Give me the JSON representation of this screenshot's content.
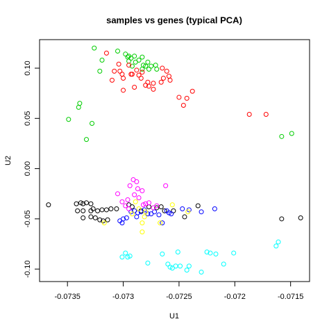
{
  "chart_data": {
    "type": "scatter",
    "title": "samples vs genes (typical PCA)",
    "x_label": "U1",
    "y_label": "U2",
    "xlim": [
      -0.07375,
      -0.07133
    ],
    "ylim": [
      -0.1124,
      0.1284
    ],
    "xticks": [
      -0.0735,
      -0.073,
      -0.0725,
      -0.072,
      -0.0715
    ],
    "yticks": [
      {
        "value": -0.1,
        "label": "-0.10"
      },
      -0.05,
      {
        "value": 0,
        "label": "0.00"
      },
      0.05,
      {
        "value": 0.1,
        "label": "0.10"
      }
    ],
    "grid": false,
    "series": [
      {
        "color": "#00cd00",
        "x": [
          -0.07326,
          -0.07319,
          -0.07321,
          -0.07305,
          -0.07298,
          -0.07296,
          -0.07295,
          -0.07293,
          -0.0729,
          -0.07295,
          -0.07289,
          -0.07286,
          -0.07283,
          -0.07282,
          -0.07283,
          -0.0728,
          -0.07278,
          -0.07277,
          -0.07275,
          -0.07271,
          -0.0727,
          -0.07339,
          -0.0734,
          -0.07349,
          -0.07328,
          -0.07333,
          -0.07158,
          -0.07149,
          -0.07292
        ],
        "y": [
          0.12,
          0.108,
          0.097,
          0.117,
          0.114,
          0.111,
          0.112,
          0.11,
          0.112,
          0.107,
          0.106,
          0.108,
          0.111,
          0.103,
          0.099,
          0.102,
          0.106,
          0.099,
          0.102,
          0.103,
          0.099,
          0.065,
          0.061,
          0.049,
          0.045,
          0.029,
          0.032,
          0.035,
          0.102
        ]
      },
      {
        "color": "#ff0000",
        "x": [
          -0.07315,
          -0.07304,
          -0.07301,
          -0.07292,
          -0.07295,
          -0.07303,
          -0.07308,
          -0.0731,
          -0.073,
          -0.07293,
          -0.07288,
          -0.07286,
          -0.07283,
          -0.07278,
          -0.07277,
          -0.07273,
          -0.07273,
          -0.07266,
          -0.07264,
          -0.07261,
          -0.07259,
          -0.07258,
          -0.07265,
          -0.0725,
          -0.07246,
          -0.07238,
          -0.07243,
          -0.07187,
          -0.07172,
          -0.073,
          -0.0729,
          -0.07284,
          -0.0728
        ],
        "y": [
          0.115,
          0.104,
          0.094,
          0.094,
          0.103,
          0.097,
          0.097,
          0.088,
          0.09,
          0.094,
          0.098,
          0.093,
          0.096,
          0.086,
          0.082,
          0.079,
          0.085,
          0.086,
          0.09,
          0.097,
          0.092,
          0.088,
          0.1,
          0.071,
          0.063,
          0.077,
          0.07,
          0.054,
          0.054,
          0.078,
          0.081,
          0.09,
          0.083
        ]
      },
      {
        "color": "#000000",
        "x": [
          -0.07367,
          -0.07342,
          -0.07338,
          -0.07336,
          -0.07333,
          -0.07329,
          -0.07341,
          -0.07336,
          -0.07329,
          -0.07327,
          -0.07323,
          -0.07319,
          -0.07315,
          -0.07311,
          -0.07336,
          -0.07329,
          -0.07325,
          -0.07321,
          -0.07318,
          -0.07314,
          -0.07295,
          -0.07292,
          -0.07277,
          -0.0727,
          -0.07266,
          -0.07263,
          -0.07255,
          -0.07245,
          -0.07233,
          -0.07141,
          -0.07158,
          -0.07306,
          -0.07284
        ],
        "y": [
          -0.036,
          -0.035,
          -0.034,
          -0.035,
          -0.034,
          -0.035,
          -0.042,
          -0.042,
          -0.042,
          -0.04,
          -0.042,
          -0.041,
          -0.041,
          -0.04,
          -0.049,
          -0.048,
          -0.049,
          -0.051,
          -0.052,
          -0.051,
          -0.036,
          -0.038,
          -0.038,
          -0.039,
          -0.038,
          -0.042,
          -0.042,
          -0.048,
          -0.037,
          -0.049,
          -0.05,
          -0.04,
          -0.042
        ]
      },
      {
        "color": "#0000ff",
        "x": [
          -0.07303,
          -0.073,
          -0.07297,
          -0.07293,
          -0.0729,
          -0.07287,
          -0.07284,
          -0.07281,
          -0.07278,
          -0.07275,
          -0.07272,
          -0.07268,
          -0.07265,
          -0.07261,
          -0.07259,
          -0.07257,
          -0.07247,
          -0.07241,
          -0.0723,
          -0.07218,
          -0.07301,
          -0.07288
        ],
        "y": [
          -0.052,
          -0.05,
          -0.049,
          -0.043,
          -0.042,
          -0.044,
          -0.043,
          -0.041,
          -0.045,
          -0.045,
          -0.043,
          -0.046,
          -0.054,
          -0.042,
          -0.044,
          -0.045,
          -0.04,
          -0.041,
          -0.043,
          -0.04,
          -0.054,
          -0.048
        ]
      },
      {
        "color": "#ff00ff",
        "x": [
          -0.07305,
          -0.07301,
          -0.07296,
          -0.07294,
          -0.07291,
          -0.07288,
          -0.07287,
          -0.0729,
          -0.07286,
          -0.07282,
          -0.0728,
          -0.07277,
          -0.07273,
          -0.07262,
          -0.07298,
          -0.07283,
          -0.0727,
          -0.07295
        ],
        "y": [
          -0.025,
          -0.033,
          -0.031,
          -0.017,
          -0.011,
          -0.013,
          -0.02,
          -0.026,
          -0.029,
          -0.036,
          -0.035,
          -0.034,
          -0.039,
          -0.017,
          -0.037,
          -0.022,
          -0.037,
          -0.04
        ]
      },
      {
        "color": "#ffff00",
        "x": [
          -0.07289,
          -0.07286,
          -0.07283,
          -0.07281,
          -0.07283,
          -0.07292,
          -0.07317,
          -0.0728,
          -0.07256,
          -0.07242,
          -0.07267
        ],
        "y": [
          -0.033,
          -0.04,
          -0.054,
          -0.048,
          -0.063,
          -0.045,
          -0.054,
          -0.043,
          -0.036,
          -0.043,
          -0.054
        ]
      },
      {
        "color": "#00ffff",
        "x": [
          -0.07301,
          -0.07298,
          -0.07296,
          -0.07294,
          -0.07278,
          -0.07265,
          -0.0726,
          -0.07258,
          -0.07256,
          -0.07253,
          -0.07251,
          -0.07249,
          -0.07243,
          -0.07241,
          -0.0723,
          -0.07225,
          -0.07222,
          -0.07217,
          -0.0721,
          -0.07201,
          -0.07163,
          -0.07161
        ],
        "y": [
          -0.088,
          -0.084,
          -0.088,
          -0.087,
          -0.094,
          -0.085,
          -0.095,
          -0.098,
          -0.099,
          -0.097,
          -0.083,
          -0.097,
          -0.101,
          -0.097,
          -0.103,
          -0.083,
          -0.084,
          -0.085,
          -0.095,
          -0.084,
          -0.077,
          -0.073
        ]
      }
    ]
  }
}
